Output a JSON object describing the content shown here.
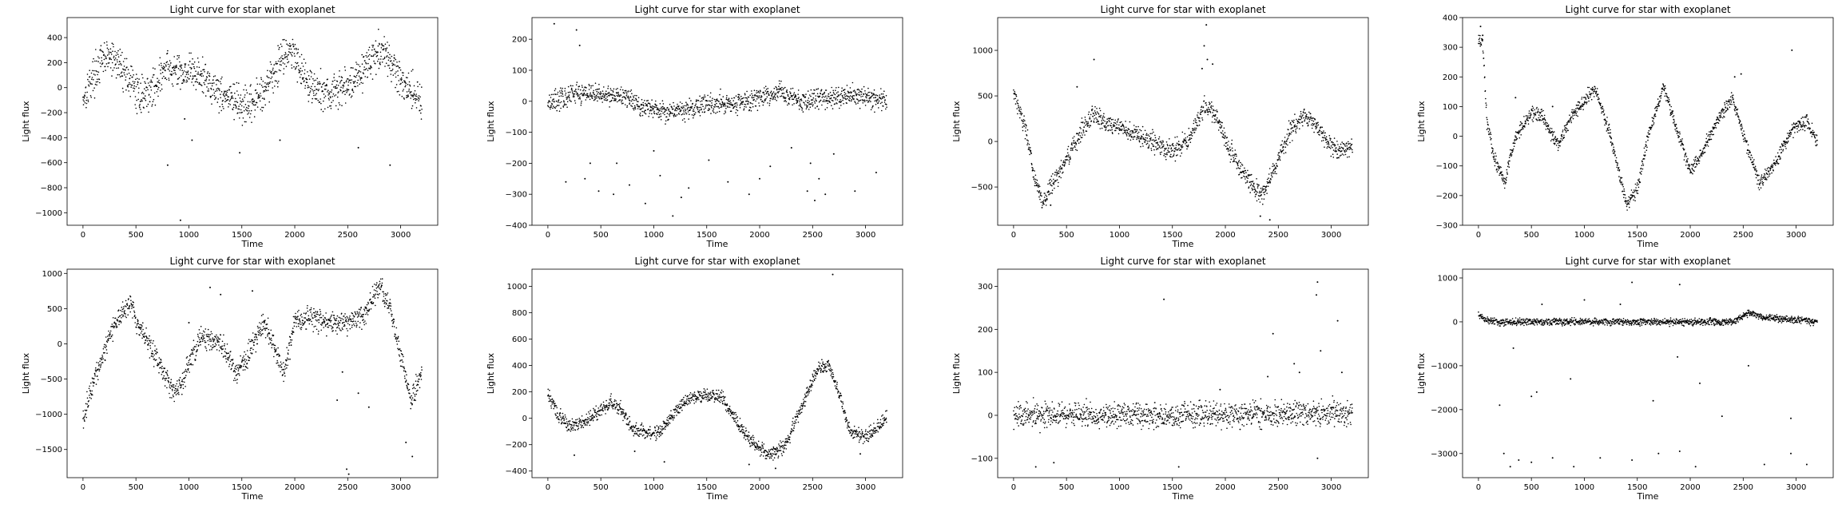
{
  "figure": {
    "background": "#ffffff",
    "point_color": "#000000"
  },
  "chart_data": [
    {
      "type": "scatter",
      "title": "Light curve for star with exoplanet",
      "xlabel": "Time",
      "ylabel": "Light flux",
      "xlim": [
        -150,
        3350
      ],
      "ylim": [
        -1100,
        560
      ],
      "xticks": [
        0,
        500,
        1000,
        1500,
        2000,
        2500,
        3000
      ],
      "yticks": [
        -1000,
        -800,
        -600,
        -400,
        -200,
        0,
        200,
        400
      ],
      "trend": [
        [
          0,
          -80
        ],
        [
          100,
          100
        ],
        [
          220,
          250
        ],
        [
          330,
          200
        ],
        [
          420,
          100
        ],
        [
          520,
          -60
        ],
        [
          650,
          -20
        ],
        [
          780,
          150
        ],
        [
          900,
          120
        ],
        [
          1000,
          140
        ],
        [
          1150,
          70
        ],
        [
          1300,
          -40
        ],
        [
          1450,
          -120
        ],
        [
          1550,
          -180
        ],
        [
          1650,
          -80
        ],
        [
          1800,
          100
        ],
        [
          1900,
          290
        ],
        [
          2000,
          270
        ],
        [
          2100,
          80
        ],
        [
          2200,
          -20
        ],
        [
          2350,
          -50
        ],
        [
          2500,
          20
        ],
        [
          2650,
          150
        ],
        [
          2800,
          300
        ],
        [
          2900,
          200
        ],
        [
          3050,
          20
        ],
        [
          3200,
          -100
        ]
      ],
      "noise": 110,
      "outliers": [
        [
          920,
          -1060
        ],
        [
          800,
          -620
        ],
        [
          1030,
          -420
        ],
        [
          1480,
          -520
        ],
        [
          2900,
          -620
        ],
        [
          1860,
          -420
        ],
        [
          960,
          -250
        ],
        [
          2600,
          -480
        ]
      ]
    },
    {
      "type": "scatter",
      "title": "Light curve for star with exoplanet",
      "xlabel": "Time",
      "ylabel": "Light flux",
      "xlim": [
        -150,
        3350
      ],
      "ylim": [
        -400,
        270
      ],
      "xticks": [
        0,
        500,
        1000,
        1500,
        2000,
        2500,
        3000
      ],
      "yticks": [
        -400,
        -300,
        -200,
        -100,
        0,
        100,
        200
      ],
      "trend": [
        [
          0,
          0
        ],
        [
          150,
          10
        ],
        [
          300,
          30
        ],
        [
          500,
          20
        ],
        [
          700,
          20
        ],
        [
          900,
          -20
        ],
        [
          1100,
          -30
        ],
        [
          1300,
          -30
        ],
        [
          1500,
          -10
        ],
        [
          1700,
          -5
        ],
        [
          1900,
          0
        ],
        [
          2100,
          20
        ],
        [
          2200,
          30
        ],
        [
          2400,
          0
        ],
        [
          2600,
          10
        ],
        [
          2800,
          20
        ],
        [
          3000,
          15
        ],
        [
          3200,
          0
        ]
      ],
      "noise": 25,
      "outliers": [
        [
          60,
          250
        ],
        [
          270,
          230
        ],
        [
          300,
          180
        ],
        [
          170,
          -260
        ],
        [
          350,
          -250
        ],
        [
          480,
          -290
        ],
        [
          620,
          -300
        ],
        [
          770,
          -270
        ],
        [
          920,
          -330
        ],
        [
          1060,
          -240
        ],
        [
          1180,
          -370
        ],
        [
          1330,
          -280
        ],
        [
          1520,
          -190
        ],
        [
          1700,
          -260
        ],
        [
          1900,
          -300
        ],
        [
          2100,
          -210
        ],
        [
          2300,
          -150
        ],
        [
          2450,
          -290
        ],
        [
          2520,
          -320
        ],
        [
          2560,
          -250
        ],
        [
          2700,
          -170
        ],
        [
          2900,
          -290
        ],
        [
          3100,
          -230
        ],
        [
          650,
          -200
        ],
        [
          400,
          -200
        ],
        [
          1260,
          -310
        ],
        [
          2000,
          -250
        ],
        [
          2620,
          -300
        ],
        [
          2480,
          -200
        ],
        [
          1000,
          -160
        ]
      ]
    },
    {
      "type": "scatter",
      "title": "Light curve for star with exoplanet",
      "xlabel": "Time",
      "ylabel": "Light flux",
      "xlim": [
        -150,
        3350
      ],
      "ylim": [
        -920,
        1360
      ],
      "xticks": [
        0,
        500,
        1000,
        1500,
        2000,
        2500,
        3000
      ],
      "yticks": [
        -500,
        0,
        500,
        1000
      ],
      "trend": [
        [
          0,
          550
        ],
        [
          100,
          200
        ],
        [
          200,
          -400
        ],
        [
          280,
          -700
        ],
        [
          350,
          -500
        ],
        [
          450,
          -300
        ],
        [
          550,
          -100
        ],
        [
          650,
          150
        ],
        [
          750,
          300
        ],
        [
          900,
          200
        ],
        [
          1100,
          100
        ],
        [
          1300,
          0
        ],
        [
          1500,
          -100
        ],
        [
          1650,
          0
        ],
        [
          1800,
          400
        ],
        [
          1900,
          300
        ],
        [
          2050,
          -100
        ],
        [
          2200,
          -400
        ],
        [
          2350,
          -600
        ],
        [
          2500,
          -200
        ],
        [
          2600,
          100
        ],
        [
          2750,
          300
        ],
        [
          2900,
          100
        ],
        [
          3050,
          -100
        ],
        [
          3200,
          -50
        ]
      ],
      "noise": 80,
      "outliers": [
        [
          1820,
          1280
        ],
        [
          1800,
          1050
        ],
        [
          1830,
          900
        ],
        [
          760,
          900
        ],
        [
          600,
          600
        ],
        [
          2420,
          -860
        ],
        [
          2330,
          -820
        ],
        [
          350,
          -700
        ],
        [
          1780,
          800
        ],
        [
          1880,
          850
        ],
        [
          240,
          -560
        ]
      ]
    },
    {
      "type": "scatter",
      "title": "Light curve for star with exoplanet",
      "xlabel": "Time",
      "ylabel": "Light flux",
      "xlim": [
        -150,
        3350
      ],
      "ylim": [
        -300,
        400
      ],
      "xticks": [
        0,
        500,
        1000,
        1500,
        2000,
        2500,
        3000
      ],
      "yticks": [
        -300,
        -200,
        -100,
        0,
        100,
        200,
        300,
        400
      ],
      "trend": [
        [
          0,
          320
        ],
        [
          40,
          320
        ],
        [
          80,
          50
        ],
        [
          150,
          -80
        ],
        [
          250,
          -150
        ],
        [
          350,
          0
        ],
        [
          500,
          80
        ],
        [
          600,
          70
        ],
        [
          750,
          -30
        ],
        [
          900,
          80
        ],
        [
          1100,
          160
        ],
        [
          1250,
          0
        ],
        [
          1400,
          -230
        ],
        [
          1500,
          -180
        ],
        [
          1600,
          0
        ],
        [
          1750,
          170
        ],
        [
          1850,
          50
        ],
        [
          2000,
          -120
        ],
        [
          2100,
          -60
        ],
        [
          2250,
          50
        ],
        [
          2400,
          130
        ],
        [
          2550,
          -50
        ],
        [
          2650,
          -150
        ],
        [
          2800,
          -100
        ],
        [
          2950,
          20
        ],
        [
          3100,
          50
        ],
        [
          3200,
          -20
        ]
      ],
      "noise": 18,
      "outliers": [
        [
          20,
          370
        ],
        [
          40,
          340
        ],
        [
          2960,
          290
        ],
        [
          350,
          130
        ],
        [
          700,
          100
        ],
        [
          1250,
          -20
        ],
        [
          2420,
          200
        ],
        [
          2480,
          210
        ]
      ]
    },
    {
      "type": "scatter",
      "title": "Light curve for star with exoplanet",
      "xlabel": "Time",
      "ylabel": "Light flux",
      "xlim": [
        -150,
        3350
      ],
      "ylim": [
        -1900,
        1060
      ],
      "xticks": [
        0,
        500,
        1000,
        1500,
        2000,
        2500,
        3000
      ],
      "yticks": [
        -1500,
        -1000,
        -500,
        0,
        500,
        1000
      ],
      "trend": [
        [
          0,
          -1100
        ],
        [
          100,
          -500
        ],
        [
          200,
          -100
        ],
        [
          300,
          300
        ],
        [
          450,
          600
        ],
        [
          500,
          300
        ],
        [
          700,
          -200
        ],
        [
          850,
          -700
        ],
        [
          950,
          -500
        ],
        [
          1100,
          100
        ],
        [
          1300,
          0
        ],
        [
          1450,
          -400
        ],
        [
          1550,
          -200
        ],
        [
          1700,
          300
        ],
        [
          1800,
          0
        ],
        [
          1900,
          -450
        ],
        [
          2000,
          300
        ],
        [
          2150,
          400
        ],
        [
          2300,
          300
        ],
        [
          2500,
          300
        ],
        [
          2650,
          400
        ],
        [
          2800,
          850
        ],
        [
          2900,
          500
        ],
        [
          3000,
          -200
        ],
        [
          3100,
          -800
        ],
        [
          3200,
          -400
        ]
      ],
      "noise": 120,
      "outliers": [
        [
          2490,
          -1780
        ],
        [
          2510,
          -1850
        ],
        [
          3110,
          -1600
        ],
        [
          3050,
          -1400
        ],
        [
          1000,
          300
        ],
        [
          1200,
          800
        ],
        [
          1300,
          700
        ],
        [
          1600,
          750
        ],
        [
          2400,
          -800
        ],
        [
          2450,
          -400
        ],
        [
          2600,
          -700
        ],
        [
          2700,
          -900
        ]
      ]
    },
    {
      "type": "scatter",
      "title": "Light curve for star with exoplanet",
      "xlabel": "Time",
      "ylabel": "Light flux",
      "xlim": [
        -150,
        3350
      ],
      "ylim": [
        -450,
        1130
      ],
      "xticks": [
        0,
        500,
        1000,
        1500,
        2000,
        2500,
        3000
      ],
      "yticks": [
        -400,
        -200,
        0,
        200,
        400,
        600,
        800,
        1000
      ],
      "trend": [
        [
          0,
          180
        ],
        [
          100,
          20
        ],
        [
          200,
          -60
        ],
        [
          350,
          -20
        ],
        [
          500,
          60
        ],
        [
          600,
          120
        ],
        [
          700,
          60
        ],
        [
          800,
          -80
        ],
        [
          900,
          -100
        ],
        [
          1050,
          -120
        ],
        [
          1200,
          50
        ],
        [
          1350,
          150
        ],
        [
          1500,
          180
        ],
        [
          1650,
          150
        ],
        [
          1800,
          -50
        ],
        [
          1950,
          -200
        ],
        [
          2100,
          -280
        ],
        [
          2250,
          -200
        ],
        [
          2400,
          100
        ],
        [
          2550,
          380
        ],
        [
          2650,
          400
        ],
        [
          2750,
          200
        ],
        [
          2850,
          -100
        ],
        [
          3000,
          -150
        ],
        [
          3200,
          0
        ]
      ],
      "noise": 40,
      "outliers": [
        [
          2690,
          1090
        ],
        [
          250,
          -280
        ],
        [
          820,
          -250
        ],
        [
          1100,
          -330
        ],
        [
          1900,
          -350
        ],
        [
          2150,
          -380
        ],
        [
          2950,
          -270
        ],
        [
          2600,
          350
        ]
      ]
    },
    {
      "type": "scatter",
      "title": "Light curve for star with exoplanet",
      "xlabel": "Time",
      "ylabel": "Light flux",
      "xlim": [
        -150,
        3350
      ],
      "ylim": [
        -145,
        340
      ],
      "xticks": [
        0,
        500,
        1000,
        1500,
        2000,
        2500,
        3000
      ],
      "yticks": [
        -100,
        0,
        100,
        200,
        300
      ],
      "trend": [
        [
          0,
          0
        ],
        [
          1000,
          0
        ],
        [
          2000,
          0
        ],
        [
          2500,
          5
        ],
        [
          3200,
          5
        ]
      ],
      "noise": 22,
      "outliers": [
        [
          1420,
          270
        ],
        [
          2870,
          310
        ],
        [
          2860,
          280
        ],
        [
          3060,
          220
        ],
        [
          2450,
          190
        ],
        [
          2400,
          90
        ],
        [
          2650,
          120
        ],
        [
          2900,
          150
        ],
        [
          1560,
          -120
        ],
        [
          380,
          -110
        ],
        [
          210,
          -120
        ],
        [
          2870,
          -100
        ],
        [
          2700,
          100
        ],
        [
          3100,
          100
        ],
        [
          1950,
          60
        ]
      ]
    },
    {
      "type": "scatter",
      "title": "Light curve for star with exoplanet",
      "xlabel": "Time",
      "ylabel": "Light flux",
      "xlim": [
        -150,
        3350
      ],
      "ylim": [
        -3550,
        1200
      ],
      "xticks": [
        0,
        500,
        1000,
        1500,
        2000,
        2500,
        3000
      ],
      "yticks": [
        -3000,
        -2000,
        -1000,
        0,
        1000
      ],
      "trend": [
        [
          0,
          150
        ],
        [
          100,
          0
        ],
        [
          500,
          0
        ],
        [
          1000,
          0
        ],
        [
          1500,
          0
        ],
        [
          2000,
          0
        ],
        [
          2400,
          0
        ],
        [
          2550,
          200
        ],
        [
          2700,
          100
        ],
        [
          3200,
          0
        ]
      ],
      "noise": 60,
      "outliers": [
        [
          240,
          -3000
        ],
        [
          300,
          -3300
        ],
        [
          380,
          -3150
        ],
        [
          500,
          -3200
        ],
        [
          700,
          -3100
        ],
        [
          900,
          -3300
        ],
        [
          1150,
          -3100
        ],
        [
          1450,
          -3150
        ],
        [
          1700,
          -3000
        ],
        [
          1900,
          -2950
        ],
        [
          2050,
          -3300
        ],
        [
          2300,
          -2150
        ],
        [
          2550,
          -1000
        ],
        [
          2700,
          -3250
        ],
        [
          2950,
          -3000
        ],
        [
          3100,
          -3250
        ],
        [
          550,
          -1600
        ],
        [
          870,
          -1300
        ],
        [
          1650,
          -1800
        ],
        [
          2090,
          -1400
        ],
        [
          2950,
          -2200
        ],
        [
          200,
          -1900
        ],
        [
          1450,
          900
        ],
        [
          1900,
          850
        ],
        [
          600,
          400
        ],
        [
          1000,
          500
        ],
        [
          1340,
          400
        ],
        [
          500,
          -1700
        ],
        [
          330,
          -600
        ],
        [
          1880,
          -800
        ]
      ]
    }
  ]
}
